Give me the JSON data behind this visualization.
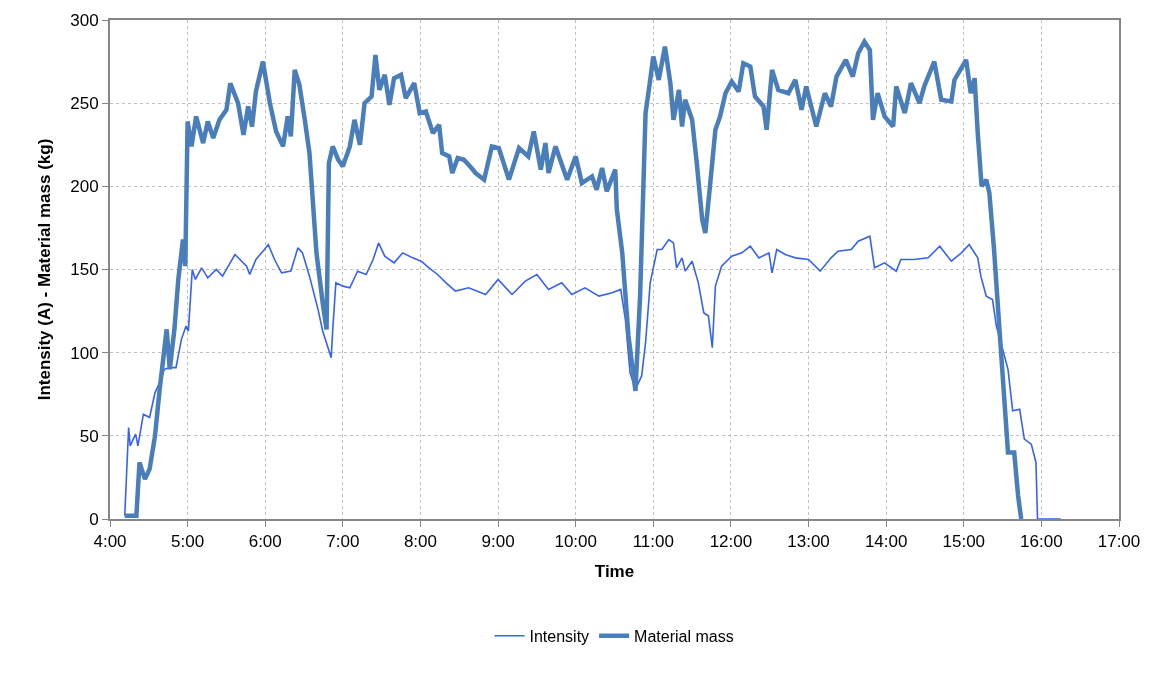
{
  "chart_data": {
    "type": "line",
    "xlabel": "Time",
    "ylabel": "Intensity (A) - Material mass (kg)",
    "xlim": [
      4,
      17
    ],
    "xticks": [
      {
        "value": 4,
        "label": "4:00"
      },
      {
        "value": 5,
        "label": "5:00"
      },
      {
        "value": 6,
        "label": "6:00"
      },
      {
        "value": 7,
        "label": "7:00"
      },
      {
        "value": 8,
        "label": "8:00"
      },
      {
        "value": 9,
        "label": "9:00"
      },
      {
        "value": 10,
        "label": "10:00"
      },
      {
        "value": 11,
        "label": "11:00"
      },
      {
        "value": 12,
        "label": "12:00"
      },
      {
        "value": 13,
        "label": "13:00"
      },
      {
        "value": 14,
        "label": "14:00"
      },
      {
        "value": 15,
        "label": "15:00"
      },
      {
        "value": 16,
        "label": "16:00"
      },
      {
        "value": 17,
        "label": "17:00"
      }
    ],
    "ylim": [
      0,
      300
    ],
    "yticks": [
      0,
      50,
      100,
      150,
      200,
      250,
      300
    ],
    "grid": true,
    "legend": "bottom",
    "marker": "none",
    "line_style": "solid",
    "series": [
      {
        "name": "Intensity",
        "color": "#3562f5",
        "x": [
          4.19,
          4.24,
          4.26,
          4.33,
          4.36,
          4.43,
          4.51,
          4.58,
          4.64,
          4.7,
          4.77,
          4.85,
          4.92,
          4.98,
          5.01,
          5.06,
          5.1,
          5.18,
          5.26,
          5.37,
          5.45,
          5.61,
          5.76,
          5.8,
          5.88,
          5.99,
          6.04,
          6.12,
          6.21,
          6.33,
          6.42,
          6.48,
          6.57,
          6.68,
          6.74,
          6.85,
          6.87,
          6.91,
          7.0,
          7.09,
          7.19,
          7.3,
          7.39,
          7.46,
          7.54,
          7.66,
          7.77,
          7.9,
          8.01,
          8.11,
          8.22,
          8.33,
          8.45,
          8.62,
          8.84,
          9.0,
          9.18,
          9.35,
          9.5,
          9.65,
          9.82,
          9.95,
          10.12,
          10.3,
          10.47,
          10.58,
          10.64,
          10.7,
          10.77,
          10.85,
          10.9,
          10.96,
          11.05,
          11.11,
          11.2,
          11.26,
          11.3,
          11.37,
          11.41,
          11.5,
          11.58,
          11.65,
          11.71,
          11.76,
          11.8,
          11.88,
          12.01,
          12.14,
          12.25,
          12.36,
          12.49,
          12.53,
          12.59,
          12.7,
          12.83,
          13.0,
          13.15,
          13.29,
          13.38,
          13.55,
          13.64,
          13.79,
          13.85,
          13.98,
          14.13,
          14.19,
          14.36,
          14.54,
          14.69,
          14.84,
          14.97,
          15.07,
          15.18,
          15.22,
          15.29,
          15.37,
          15.42,
          15.57,
          15.63,
          15.72,
          15.78,
          15.87,
          15.93,
          15.95,
          16.25
        ],
        "values": [
          2,
          55,
          44,
          51,
          44,
          63,
          61,
          76,
          82,
          90,
          91,
          91,
          108,
          116,
          113,
          150,
          144,
          151,
          145,
          150,
          146,
          159,
          152,
          147,
          156,
          162,
          165,
          156,
          148,
          149,
          163,
          160,
          146,
          126,
          113,
          97,
          114,
          142,
          140,
          139,
          149,
          147,
          156,
          166,
          158,
          154,
          160,
          157,
          155,
          151,
          147,
          142,
          137,
          139,
          135,
          144,
          135,
          143,
          147,
          138,
          142,
          135,
          139,
          134,
          136,
          138,
          120,
          88,
          78,
          86,
          106,
          142,
          162,
          162,
          168,
          166,
          151,
          157,
          149,
          155,
          142,
          124,
          122,
          103,
          140,
          152,
          158,
          160,
          164,
          157,
          160,
          148,
          162,
          159,
          157,
          156,
          149,
          157,
          161,
          162,
          167,
          170,
          151,
          154,
          149,
          156,
          156,
          157,
          164,
          155,
          160,
          165,
          157,
          146,
          134,
          132,
          116,
          90,
          65,
          66,
          48,
          45,
          34,
          0,
          0
        ]
      },
      {
        "name": "Material mass",
        "color": "#4a7ebb",
        "x": [
          4.19,
          4.34,
          4.38,
          4.45,
          4.51,
          4.58,
          4.64,
          4.68,
          4.73,
          4.77,
          4.83,
          4.88,
          4.94,
          4.97,
          5.0,
          5.05,
          5.11,
          5.2,
          5.26,
          5.33,
          5.41,
          5.5,
          5.55,
          5.65,
          5.72,
          5.78,
          5.83,
          5.88,
          5.97,
          6.06,
          6.14,
          6.23,
          6.29,
          6.33,
          6.38,
          6.44,
          6.51,
          6.57,
          6.66,
          6.74,
          6.79,
          6.82,
          6.87,
          6.94,
          7.0,
          7.09,
          7.15,
          7.22,
          7.28,
          7.37,
          7.42,
          7.47,
          7.54,
          7.6,
          7.66,
          7.75,
          7.81,
          7.92,
          7.99,
          8.07,
          8.16,
          8.24,
          8.28,
          8.37,
          8.41,
          8.48,
          8.56,
          8.64,
          8.71,
          8.82,
          8.92,
          9.01,
          9.14,
          9.27,
          9.39,
          9.46,
          9.55,
          9.61,
          9.65,
          9.74,
          9.89,
          10.0,
          10.08,
          10.21,
          10.27,
          10.34,
          10.4,
          10.51,
          10.53,
          10.6,
          10.68,
          10.77,
          10.83,
          10.9,
          10.96,
          11.0,
          11.07,
          11.15,
          11.22,
          11.26,
          11.33,
          11.37,
          11.41,
          11.5,
          11.56,
          11.63,
          11.67,
          11.73,
          11.8,
          11.86,
          11.93,
          12.01,
          12.1,
          12.16,
          12.25,
          12.31,
          12.42,
          12.46,
          12.53,
          12.61,
          12.74,
          12.83,
          12.91,
          12.97,
          13.1,
          13.21,
          13.29,
          13.36,
          13.48,
          13.57,
          13.64,
          13.72,
          13.79,
          13.83,
          13.89,
          13.98,
          14.09,
          14.13,
          14.24,
          14.32,
          14.43,
          14.49,
          14.62,
          14.71,
          14.84,
          14.88,
          15.03,
          15.09,
          15.14,
          15.18,
          15.23,
          15.29,
          15.33,
          15.39,
          15.46,
          15.57,
          15.65,
          15.7,
          15.74
        ],
        "values": [
          2,
          2,
          34,
          24,
          30,
          50,
          78,
          94,
          114,
          90,
          114,
          144,
          168,
          152,
          239,
          224,
          242,
          226,
          239,
          229,
          240,
          246,
          262,
          250,
          231,
          248,
          236,
          257,
          275,
          250,
          233,
          224,
          242,
          230,
          270,
          261,
          240,
          220,
          160,
          130,
          114,
          214,
          224,
          216,
          212,
          224,
          240,
          225,
          250,
          254,
          279,
          258,
          267,
          249,
          265,
          267,
          253,
          262,
          244,
          245,
          232,
          237,
          220,
          218,
          208,
          217,
          216,
          212,
          208,
          204,
          224,
          223,
          204,
          223,
          218,
          233,
          210,
          226,
          208,
          224,
          204,
          218,
          202,
          206,
          198,
          211,
          197,
          210,
          186,
          160,
          110,
          77,
          134,
          244,
          264,
          278,
          264,
          284,
          262,
          240,
          258,
          236,
          252,
          240,
          214,
          180,
          172,
          200,
          234,
          242,
          256,
          263,
          257,
          274,
          272,
          254,
          248,
          234,
          270,
          258,
          256,
          264,
          246,
          260,
          236,
          256,
          248,
          266,
          276,
          266,
          280,
          287,
          282,
          240,
          256,
          242,
          236,
          260,
          244,
          262,
          250,
          260,
          275,
          252,
          251,
          264,
          276,
          256,
          265,
          232,
          200,
          204,
          196,
          162,
          114,
          40,
          40,
          14,
          0
        ]
      }
    ]
  }
}
